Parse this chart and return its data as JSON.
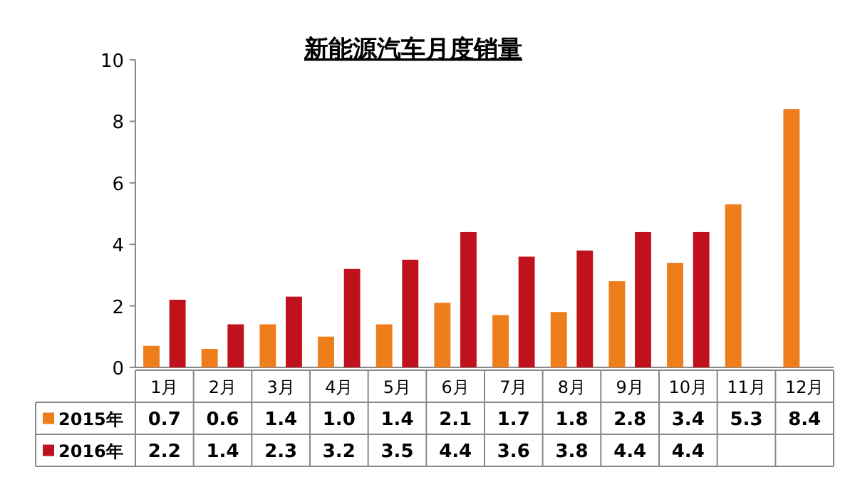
{
  "chart_data": {
    "type": "bar",
    "title": "新能源汽车月度销量",
    "categories": [
      "1月",
      "2月",
      "3月",
      "4月",
      "5月",
      "6月",
      "7月",
      "8月",
      "9月",
      "10月",
      "11月",
      "12月"
    ],
    "series": [
      {
        "name": "2015年",
        "color": "#ee7d1c",
        "values": [
          0.7,
          0.6,
          1.4,
          1.0,
          1.4,
          2.1,
          1.7,
          1.8,
          2.8,
          3.4,
          5.3,
          8.4
        ],
        "value_labels": [
          "0.7",
          "0.6",
          "1.4",
          "1.0",
          "1.4",
          "2.1",
          "1.7",
          "1.8",
          "2.8",
          "3.4",
          "5.3",
          "8.4"
        ]
      },
      {
        "name": "2016年",
        "color": "#c0121c",
        "values": [
          2.2,
          1.4,
          2.3,
          3.2,
          3.5,
          4.4,
          3.6,
          3.8,
          4.4,
          4.4,
          null,
          null
        ],
        "value_labels": [
          "2.2",
          "1.4",
          "2.3",
          "3.2",
          "3.5",
          "4.4",
          "3.6",
          "3.8",
          "4.4",
          "4.4",
          null,
          null
        ]
      }
    ],
    "ylim": [
      0,
      10
    ],
    "yticks": [
      0,
      2,
      4,
      6,
      8,
      10
    ],
    "grid": false,
    "legend": "bottom left"
  }
}
